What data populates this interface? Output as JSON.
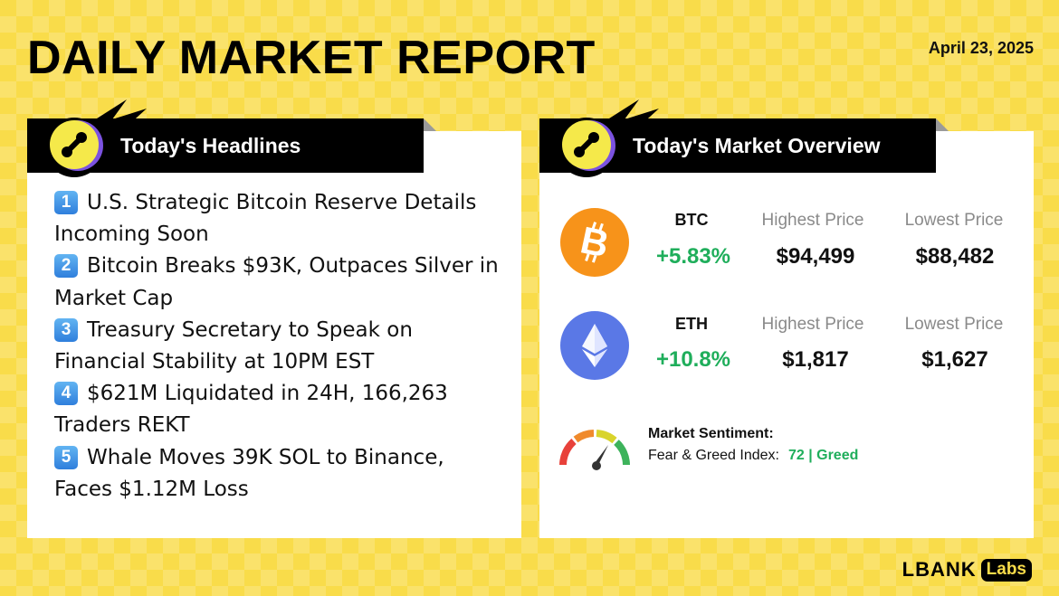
{
  "header": {
    "title": "DAILY MARKET REPORT",
    "date": "April 23, 2025"
  },
  "headlines_panel": {
    "title": "Today's Headlines",
    "items": [
      {
        "number": "1",
        "text": "U.S. Strategic Bitcoin Reserve Details Incoming Soon"
      },
      {
        "number": "2",
        "text": "Bitcoin Breaks $93K, Outpaces Silver in Market Cap"
      },
      {
        "number": "3",
        "text": "Treasury Secretary to Speak on Financial Stability at 10PM EST"
      },
      {
        "number": "4",
        "text": "$621M Liquidated in 24H, 166,263 Traders REKT"
      },
      {
        "number": "5",
        "text": "Whale Moves 39K SOL to Binance, Faces $1.12M Loss"
      }
    ]
  },
  "market_panel": {
    "title": "Today's Market Overview",
    "coins": [
      {
        "symbol": "BTC",
        "change": "+5.83%",
        "high_label": "Highest Price",
        "high": "$94,499",
        "low_label": "Lowest Price",
        "low": "$88,482",
        "icon": "bitcoin-icon",
        "color": "#f7931a"
      },
      {
        "symbol": "ETH",
        "change": "+10.8%",
        "high_label": "Highest Price",
        "high": "$1,817",
        "low_label": "Lowest Price",
        "low": "$1,627",
        "icon": "ethereum-icon",
        "color": "#5a78e6"
      }
    ],
    "sentiment": {
      "title": "Market Sentiment:",
      "index_label": "Fear & Greed Index:",
      "index_value": "72 | Greed",
      "value_color": "#1fae5b",
      "gauge_level": 72,
      "icon": "gauge-icon"
    }
  },
  "brand": {
    "name": "LBANK",
    "sub": "Labs"
  },
  "colors": {
    "background": "#f9dc4a",
    "positive": "#1fae5b",
    "muted": "#8a8a8a"
  }
}
